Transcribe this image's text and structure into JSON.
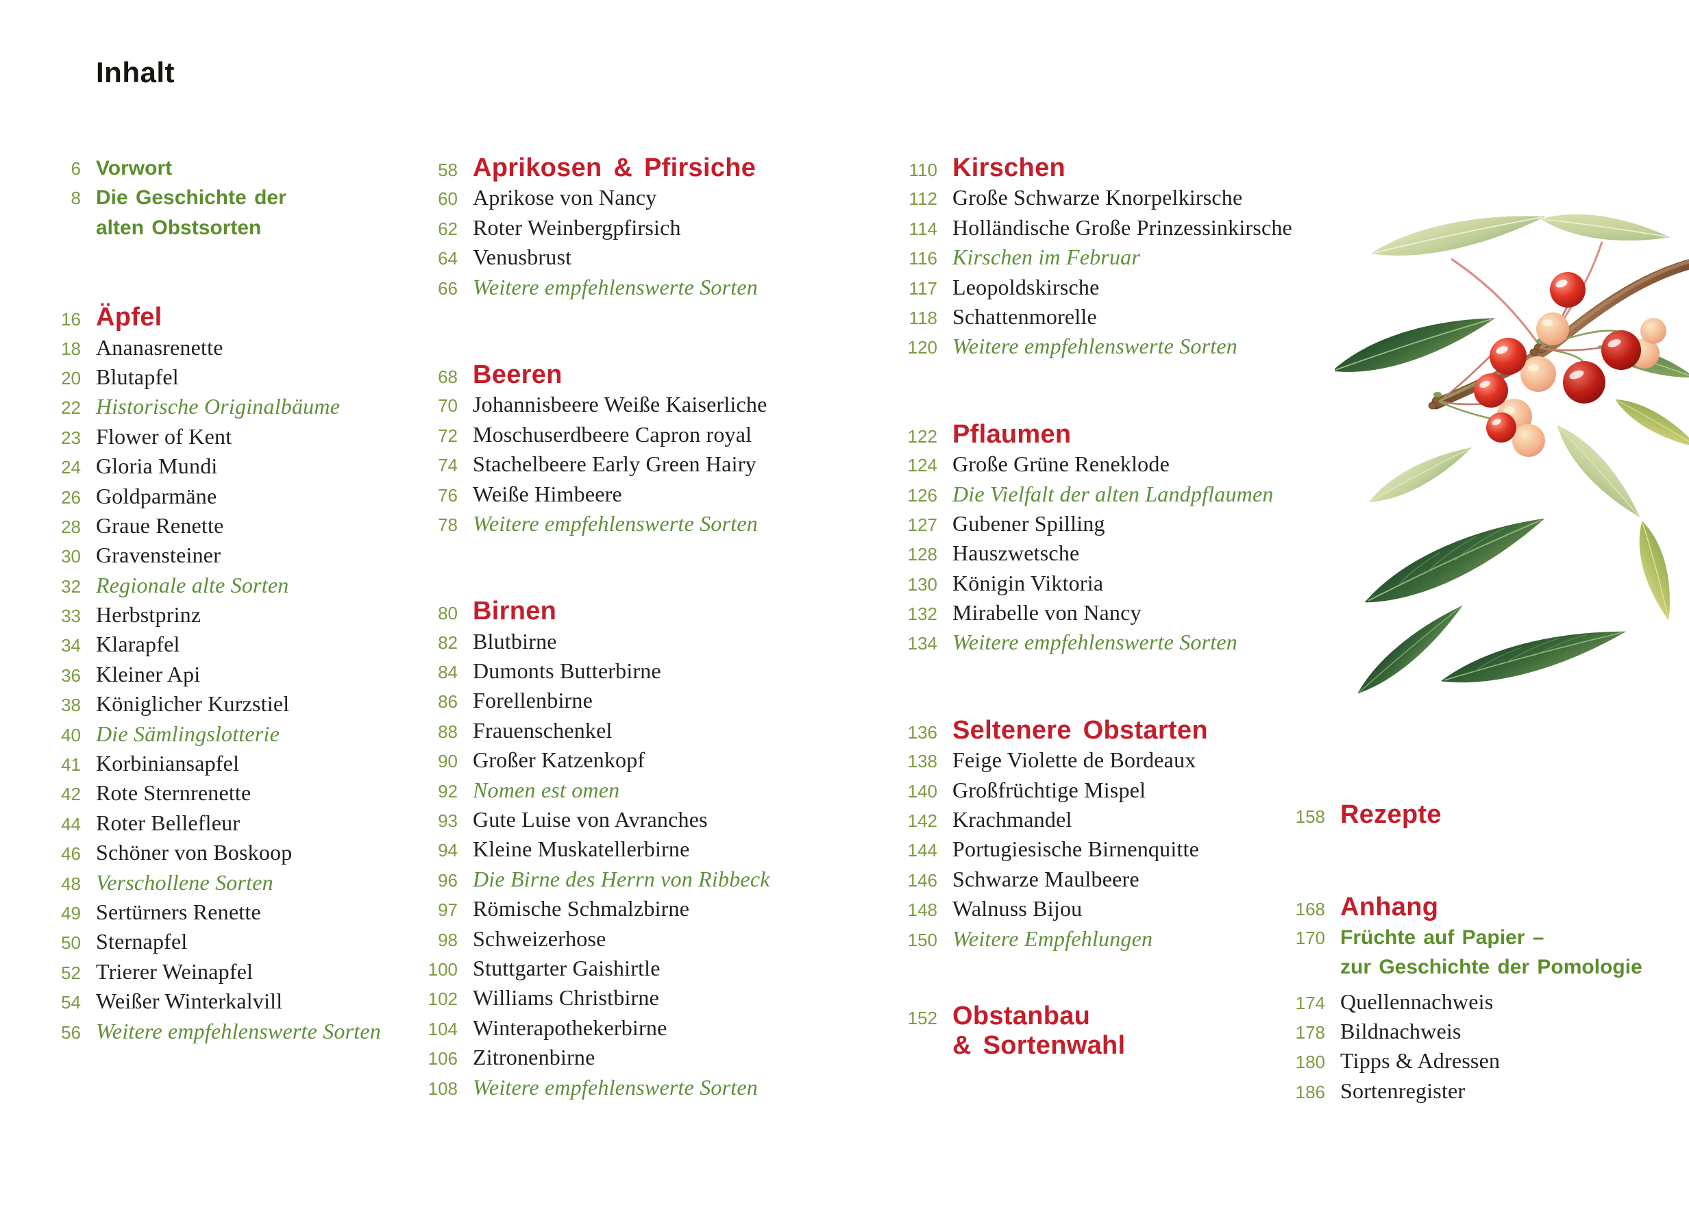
{
  "page": {
    "title": "Inhalt",
    "colors": {
      "heading_red": "#c41e2a",
      "page_number_green": "#7d9b42",
      "bold_green": "#5c8f2c",
      "italic_green": "#60903a",
      "text_black": "#221f1c",
      "background": "#ffffff"
    }
  },
  "illustration": {
    "name": "cherry-branch-illustration",
    "description": "Botanical watercolor of a cherry branch with red and pale yellow-rose cherries and green leaves"
  },
  "columns": [
    {
      "sections": [
        {
          "rows": [
            {
              "page": "6",
              "label": "Vorwort",
              "style": "bold-green"
            },
            {
              "page": "8",
              "label": "Die Geschichte der",
              "style": "bold-green"
            },
            {
              "page": "",
              "label": "alten Obstsorten",
              "style": "bold-green-cont"
            }
          ]
        },
        {
          "rows": [
            {
              "page": "16",
              "label": "Äpfel",
              "style": "chapter"
            },
            {
              "page": "18",
              "label": "Ananasrenette",
              "style": "entry"
            },
            {
              "page": "20",
              "label": "Blutapfel",
              "style": "entry"
            },
            {
              "page": "22",
              "label": "Historische Originalbäume",
              "style": "essay"
            },
            {
              "page": "23",
              "label": "Flower of Kent",
              "style": "entry"
            },
            {
              "page": "24",
              "label": "Gloria Mundi",
              "style": "entry"
            },
            {
              "page": "26",
              "label": "Goldparmäne",
              "style": "entry"
            },
            {
              "page": "28",
              "label": "Graue Renette",
              "style": "entry"
            },
            {
              "page": "30",
              "label": "Gravensteiner",
              "style": "entry"
            },
            {
              "page": "32",
              "label": "Regionale alte Sorten",
              "style": "essay"
            },
            {
              "page": "33",
              "label": "Herbstprinz",
              "style": "entry"
            },
            {
              "page": "34",
              "label": "Klarapfel",
              "style": "entry"
            },
            {
              "page": "36",
              "label": "Kleiner Api",
              "style": "entry"
            },
            {
              "page": "38",
              "label": "Königlicher Kurzstiel",
              "style": "entry"
            },
            {
              "page": "40",
              "label": "Die Sämlingslotterie",
              "style": "essay"
            },
            {
              "page": "41",
              "label": "Korbiniansapfel",
              "style": "entry"
            },
            {
              "page": "42",
              "label": "Rote Sternrenette",
              "style": "entry"
            },
            {
              "page": "44",
              "label": "Roter Bellefleur",
              "style": "entry"
            },
            {
              "page": "46",
              "label": "Schöner von Boskoop",
              "style": "entry"
            },
            {
              "page": "48",
              "label": "Verschollene Sorten",
              "style": "essay"
            },
            {
              "page": "49",
              "label": "Sertürners Renette",
              "style": "entry"
            },
            {
              "page": "50",
              "label": "Sternapfel",
              "style": "entry"
            },
            {
              "page": "52",
              "label": "Trierer Weinapfel",
              "style": "entry"
            },
            {
              "page": "54",
              "label": "Weißer Winterkalvill",
              "style": "entry"
            },
            {
              "page": "56",
              "label": "Weitere empfehlenswerte Sorten",
              "style": "essay"
            }
          ]
        }
      ]
    },
    {
      "sections": [
        {
          "rows": [
            {
              "page": "58",
              "label": "Aprikosen & Pfirsiche",
              "style": "chapter"
            },
            {
              "page": "60",
              "label": "Aprikose von Nancy",
              "style": "entry"
            },
            {
              "page": "62",
              "label": "Roter Weinbergpfirsich",
              "style": "entry"
            },
            {
              "page": "64",
              "label": "Venusbrust",
              "style": "entry"
            },
            {
              "page": "66",
              "label": "Weitere empfehlenswerte Sorten",
              "style": "essay"
            }
          ]
        },
        {
          "rows": [
            {
              "page": "68",
              "label": "Beeren",
              "style": "chapter"
            },
            {
              "page": "70",
              "label": "Johannisbeere Weiße Kaiserliche",
              "style": "entry"
            },
            {
              "page": "72",
              "label": "Moschuserdbeere Capron royal",
              "style": "entry"
            },
            {
              "page": "74",
              "label": "Stachelbeere Early Green Hairy",
              "style": "entry"
            },
            {
              "page": "76",
              "label": "Weiße Himbeere",
              "style": "entry"
            },
            {
              "page": "78",
              "label": "Weitere empfehlenswerte Sorten",
              "style": "essay"
            }
          ]
        },
        {
          "rows": [
            {
              "page": "80",
              "label": "Birnen",
              "style": "chapter"
            },
            {
              "page": "82",
              "label": "Blutbirne",
              "style": "entry"
            },
            {
              "page": "84",
              "label": "Dumonts Butterbirne",
              "style": "entry"
            },
            {
              "page": "86",
              "label": "Forellenbirne",
              "style": "entry"
            },
            {
              "page": "88",
              "label": "Frauenschenkel",
              "style": "entry"
            },
            {
              "page": "90",
              "label": "Großer Katzenkopf",
              "style": "entry"
            },
            {
              "page": "92",
              "label": "Nomen est omen",
              "style": "essay"
            },
            {
              "page": "93",
              "label": "Gute Luise von Avranches",
              "style": "entry"
            },
            {
              "page": "94",
              "label": "Kleine Muskatellerbirne",
              "style": "entry"
            },
            {
              "page": "96",
              "label": "Die Birne des Herrn von Ribbeck",
              "style": "essay"
            },
            {
              "page": "97",
              "label": "Römische Schmalzbirne",
              "style": "entry"
            },
            {
              "page": "98",
              "label": "Schweizerhose",
              "style": "entry"
            },
            {
              "page": "100",
              "label": "Stuttgarter Gaishirtle",
              "style": "entry"
            },
            {
              "page": "102",
              "label": "Williams Christbirne",
              "style": "entry"
            },
            {
              "page": "104",
              "label": "Winterapothekerbirne",
              "style": "entry"
            },
            {
              "page": "106",
              "label": "Zitronenbirne",
              "style": "entry"
            },
            {
              "page": "108",
              "label": "Weitere empfehlenswerte Sorten",
              "style": "essay"
            }
          ]
        }
      ]
    },
    {
      "sections": [
        {
          "rows": [
            {
              "page": "110",
              "label": "Kirschen",
              "style": "chapter"
            },
            {
              "page": "112",
              "label": "Große Schwarze Knorpelkirsche",
              "style": "entry"
            },
            {
              "page": "114",
              "label": "Holländische Große Prinzessinkirsche",
              "style": "entry"
            },
            {
              "page": "116",
              "label": "Kirschen im Februar",
              "style": "essay"
            },
            {
              "page": "117",
              "label": "Leopoldskirsche",
              "style": "entry"
            },
            {
              "page": "118",
              "label": "Schattenmorelle",
              "style": "entry"
            },
            {
              "page": "120",
              "label": "Weitere empfehlenswerte Sorten",
              "style": "essay"
            }
          ]
        },
        {
          "rows": [
            {
              "page": "122",
              "label": "Pflaumen",
              "style": "chapter"
            },
            {
              "page": "124",
              "label": "Große Grüne Reneklode",
              "style": "entry"
            },
            {
              "page": "126",
              "label": "Die Vielfalt der alten Landpflaumen",
              "style": "essay"
            },
            {
              "page": "127",
              "label": "Gubener Spilling",
              "style": "entry"
            },
            {
              "page": "128",
              "label": "Hauszwetsche",
              "style": "entry"
            },
            {
              "page": "130",
              "label": "Königin Viktoria",
              "style": "entry"
            },
            {
              "page": "132",
              "label": "Mirabelle von Nancy",
              "style": "entry"
            },
            {
              "page": "134",
              "label": "Weitere empfehlenswerte Sorten",
              "style": "essay"
            }
          ]
        },
        {
          "rows": [
            {
              "page": "136",
              "label": "Seltenere Obstarten",
              "style": "chapter"
            },
            {
              "page": "138",
              "label": "Feige Violette de Bordeaux",
              "style": "entry"
            },
            {
              "page": "140",
              "label": "Großfrüchtige Mispel",
              "style": "entry"
            },
            {
              "page": "142",
              "label": "Krachmandel",
              "style": "entry"
            },
            {
              "page": "144",
              "label": "Portugiesische Birnenquitte",
              "style": "entry"
            },
            {
              "page": "146",
              "label": "Schwarze Maulbeere",
              "style": "entry"
            },
            {
              "page": "148",
              "label": "Walnuss Bijou",
              "style": "entry"
            },
            {
              "page": "150",
              "label": "Weitere Empfehlungen",
              "style": "essay"
            }
          ]
        },
        {
          "rows": [
            {
              "page": "152",
              "label": "Obstanbau",
              "style": "chapter"
            },
            {
              "page": "",
              "label": "& Sortenwahl",
              "style": "chapter-cont"
            }
          ]
        }
      ]
    },
    {
      "sections": [
        {
          "rows": [
            {
              "page": "158",
              "label": "Rezepte",
              "style": "chapter"
            }
          ]
        },
        {
          "rows": [
            {
              "page": "168",
              "label": "Anhang",
              "style": "chapter"
            },
            {
              "page": "170",
              "label": "Früchte auf Papier –",
              "style": "bold-green"
            },
            {
              "page": "",
              "label": "zur Geschichte der Pomologie",
              "style": "bold-green-cont"
            },
            {
              "page": "174",
              "label": "Quellennachweis",
              "style": "entry"
            },
            {
              "page": "178",
              "label": "Bildnachweis",
              "style": "entry"
            },
            {
              "page": "180",
              "label": "Tipps & Adressen",
              "style": "entry"
            },
            {
              "page": "186",
              "label": "Sortenregister",
              "style": "entry"
            }
          ]
        }
      ]
    }
  ]
}
